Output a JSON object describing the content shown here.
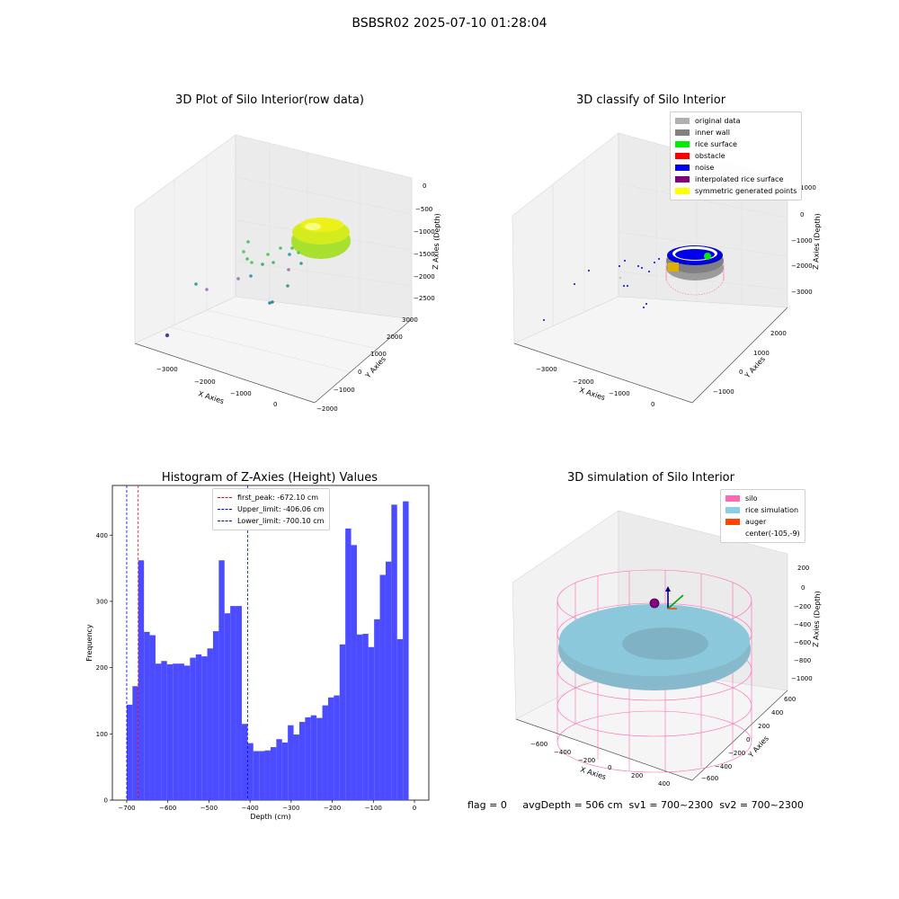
{
  "suptitle": "BSBSR02 2025-07-10 01:28:04",
  "panels": {
    "raw": {
      "title": "3D Plot of Silo Interior(row data)",
      "xlabel": "X Axies",
      "ylabel": "Y Axies",
      "zlabel": "Z Axies (Depth)",
      "xticks": [
        "−3000",
        "−2000",
        "−1000",
        "0"
      ],
      "yticks": [
        "−2000",
        "−1000",
        "0",
        "1000",
        "2000",
        "3000"
      ],
      "zticks": [
        "0",
        "−500",
        "−1000",
        "−1500",
        "−2000",
        "−2500"
      ]
    },
    "classify": {
      "title": "3D classify of Silo Interior",
      "xlabel": "X Axies",
      "ylabel": "Y Axies",
      "zlabel": "Z Axies (Depth)",
      "xticks": [
        "−3000",
        "−2000",
        "−1000",
        "0"
      ],
      "yticks": [
        "−1000",
        "0",
        "1000",
        "2000"
      ],
      "zticks": [
        "1000",
        "0",
        "−1000",
        "−2000",
        "−3000"
      ],
      "legend": [
        {
          "label": "original data",
          "color": "#b0b0b0"
        },
        {
          "label": "inner wall",
          "color": "#808080"
        },
        {
          "label": "rice surface",
          "color": "#00ee00"
        },
        {
          "label": "obstacle",
          "color": "#ff0000"
        },
        {
          "label": "noise",
          "color": "#0000ee"
        },
        {
          "label": "interpolated rice surface",
          "color": "#800080"
        },
        {
          "label": "symmetric generated points",
          "color": "#ffff00"
        }
      ]
    },
    "histogram": {
      "title": "Histogram of Z-Axies (Height) Values",
      "xlabel": "Depth (cm)",
      "ylabel": "Frequency",
      "legend": [
        {
          "label": "first_peak: -672.10 cm",
          "color": "#ff0000"
        },
        {
          "label": "Upper_limit: -406.06 cm",
          "color": "#0000ff"
        },
        {
          "label": "Lower_limit: -700.10 cm",
          "color": "#0000ff"
        }
      ]
    },
    "simulation": {
      "title": "3D simulation of Silo Interior",
      "xlabel": "X Axies",
      "ylabel": "Y Axies",
      "zlabel": "Z Axies (Depth)",
      "xticks": [
        "−600",
        "−400",
        "−200",
        "0",
        "200",
        "400"
      ],
      "yticks": [
        "600",
        "400",
        "200",
        "0",
        "−200",
        "−400",
        "−600"
      ],
      "zticks": [
        "200",
        "0",
        "−200",
        "−400",
        "−600",
        "−800",
        "−1000"
      ],
      "legend": [
        {
          "label": "silo",
          "color": "#ff69b4"
        },
        {
          "label": "rice simulation",
          "color": "#87ceeb"
        },
        {
          "label": "auger",
          "color": "#ff4500"
        },
        {
          "label": "center(-105,-9)",
          "color": ""
        }
      ]
    }
  },
  "footer": "flag = 0     avgDepth = 506 cm  sv1 = 700~2300  sv2 = 700~2300",
  "chart_data": [
    {
      "type": "bar",
      "title": "Histogram of Z-Axies (Height) Values",
      "xlabel": "Depth (cm)",
      "ylabel": "Frequency",
      "xlim": [
        -735,
        35
      ],
      "ylim": [
        0,
        475
      ],
      "xticks": [
        -700,
        -600,
        -500,
        -400,
        -300,
        -200,
        -100,
        0
      ],
      "yticks": [
        0,
        100,
        200,
        300,
        400
      ],
      "bin_start": -700.1,
      "bin_width": 14.0,
      "values": [
        144,
        172,
        362,
        254,
        249,
        206,
        210,
        205,
        206,
        206,
        203,
        215,
        220,
        217,
        229,
        255,
        362,
        282,
        293,
        293,
        115,
        86,
        74,
        74,
        75,
        80,
        92,
        87,
        113,
        99,
        118,
        125,
        128,
        124,
        143,
        155,
        158,
        235,
        410,
        385,
        250,
        251,
        231,
        273,
        340,
        360,
        446,
        243,
        451
      ],
      "vlines": [
        {
          "x": -672.1,
          "color": "#ff0000",
          "label": "first_peak: -672.10 cm"
        },
        {
          "x": -406.06,
          "color": "#0000ff",
          "label": "Upper_limit: -406.06 cm"
        },
        {
          "x": -700.1,
          "color": "#0000ff",
          "label": "Lower_limit: -700.10 cm"
        }
      ],
      "bar_color": "#4b4bff"
    }
  ]
}
